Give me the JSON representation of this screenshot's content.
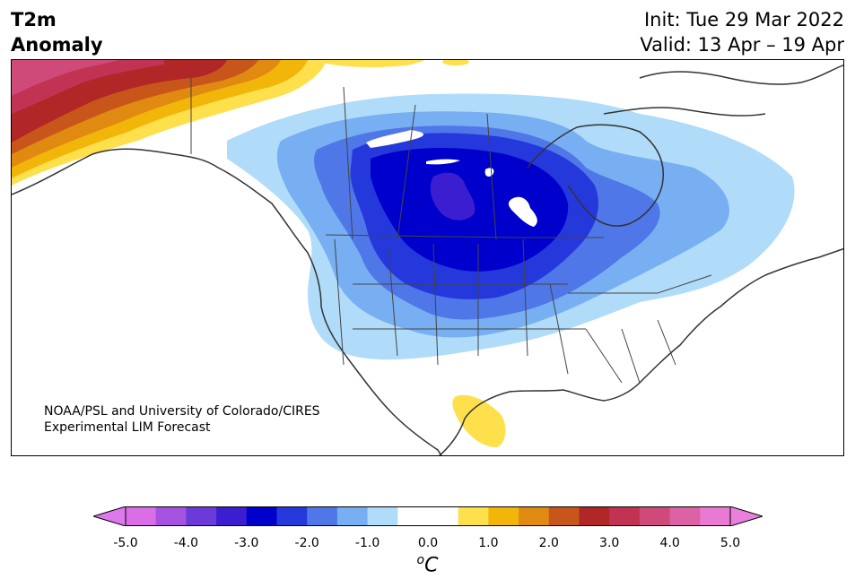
{
  "title": {
    "line1": "T2m",
    "line2": "Anomaly"
  },
  "init": "Init: Tue 29 Mar 2022",
  "valid": "Valid: 13 Apr – 19 Apr",
  "credit": {
    "line1": "NOAA/PSL and University of Colorado/CIRES",
    "line2": "Experimental LIM Forecast"
  },
  "colorbar": {
    "unit_base": "C",
    "unit_superscript": "o",
    "ticks": [
      "-5.0",
      "-4.0",
      "-3.0",
      "-2.0",
      "-1.0",
      "0.0",
      "1.0",
      "2.0",
      "3.0",
      "4.0",
      "5.0"
    ],
    "colors": [
      "#d96ee6",
      "#a552e0",
      "#6c3ad8",
      "#3b1ed0",
      "#0000cc",
      "#2538dc",
      "#4f77e8",
      "#77aff2",
      "#b0dcfa",
      "#ffffff",
      "#ffffff",
      "#fde04c",
      "#f2b60a",
      "#e08a12",
      "#c8561a",
      "#b12626",
      "#c23252",
      "#cf4a78",
      "#dc62a6",
      "#e87ad4"
    ],
    "under_color": "#de78ec",
    "over_color": "#ea80dc"
  },
  "map": {
    "domain": "North America",
    "colors": {
      "cold1": "#b0dcfa",
      "cold2": "#77aff2",
      "cold3": "#4f77e8",
      "cold4": "#2538dc",
      "cold5": "#0000cc",
      "cold6": "#3b1ed0",
      "warm1": "#fde04c",
      "warm2": "#f2b60a",
      "warm3": "#e08a12",
      "warm4": "#c8561a",
      "warm5": "#b12626",
      "warm6": "#c23252",
      "warm7": "#cf4a78",
      "coast": "#333333"
    }
  }
}
